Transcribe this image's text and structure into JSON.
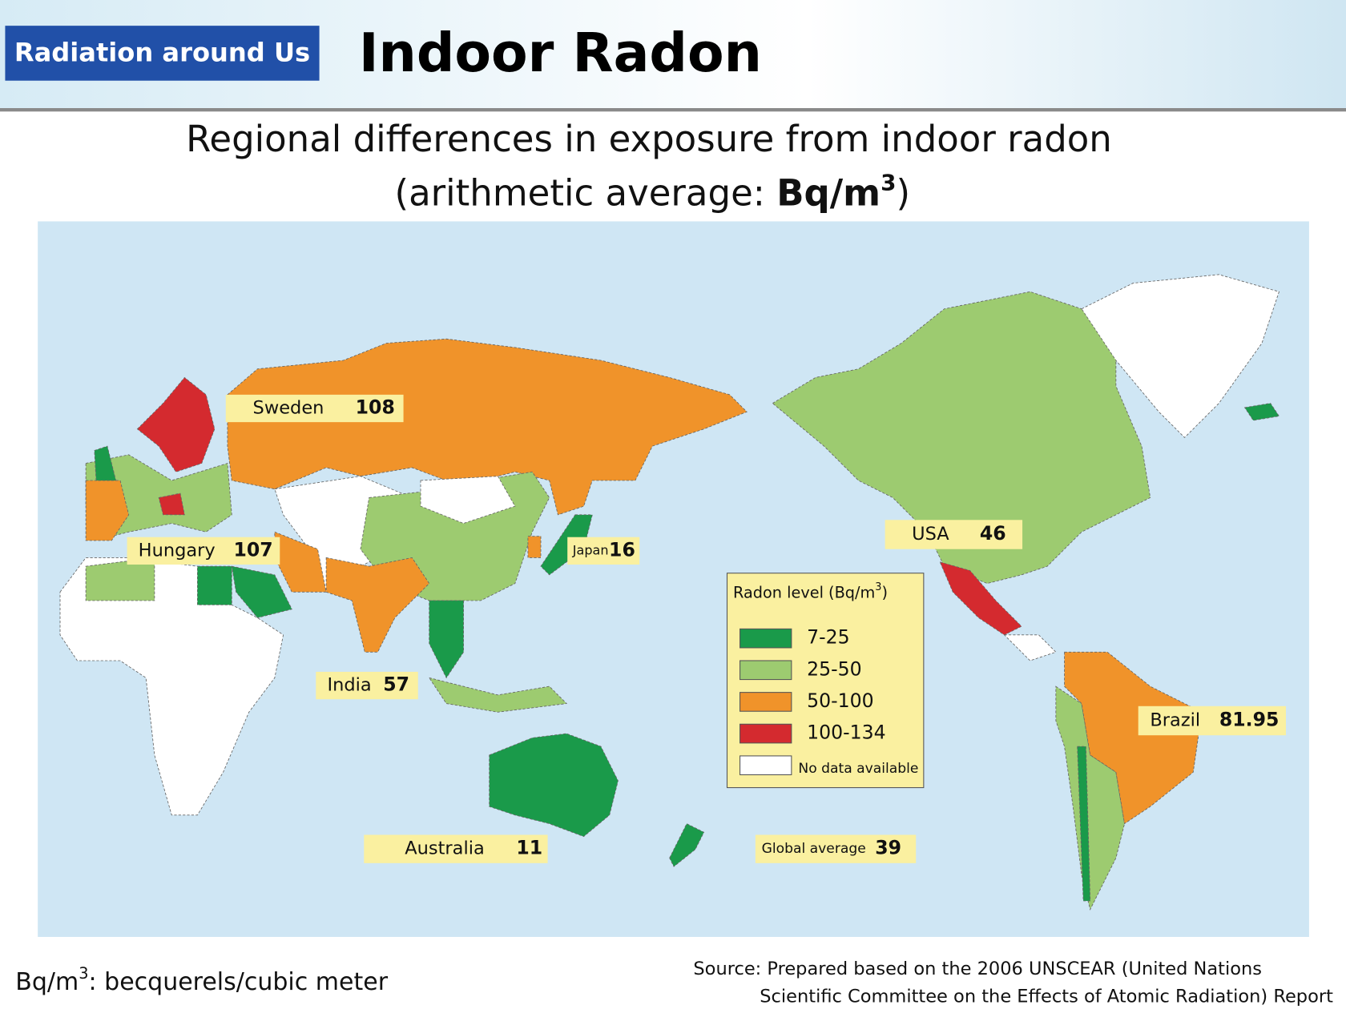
{
  "header": {
    "tag": "Radiation around Us",
    "title": "Indoor Radon"
  },
  "subtitle": {
    "line1": "Regional differences in exposure from indoor radon",
    "line2": "(arithmetic average: ",
    "unit": "Bq/m",
    "unit_sup": "3",
    "close": ")"
  },
  "map": {
    "labels": [
      {
        "name": "Sweden",
        "value": 108
      },
      {
        "name": "Hungary",
        "value": 107
      },
      {
        "name": "Japan",
        "value": 16
      },
      {
        "name": "USA",
        "value": 46
      },
      {
        "name": "India",
        "value": 57
      },
      {
        "name": "Brazil",
        "value": 81.95
      },
      {
        "name": "Australia",
        "value": 11
      },
      {
        "name": "Global average",
        "value": 39
      }
    ]
  },
  "legend": {
    "title": "Radon level (Bq/m",
    "title_sup": "3",
    "title_close": ")",
    "items": [
      {
        "label": "7-25",
        "color": "#1a9a4a"
      },
      {
        "label": "25-50",
        "color": "#9dcb70"
      },
      {
        "label": "50-100",
        "color": "#f0932a"
      },
      {
        "label": "100-134",
        "color": "#d42a2f"
      },
      {
        "label": "No data available",
        "color": "#ffffff"
      }
    ]
  },
  "footer": {
    "unit": "Bq/m",
    "unit_sup": "3",
    "unit_text": ": becquerels/cubic meter",
    "source_line1": "Source: Prepared based on the 2006 UNSCEAR (United Nations",
    "source_line2": "Scientific Committee on the Effects of Atomic Radiation) Report"
  }
}
